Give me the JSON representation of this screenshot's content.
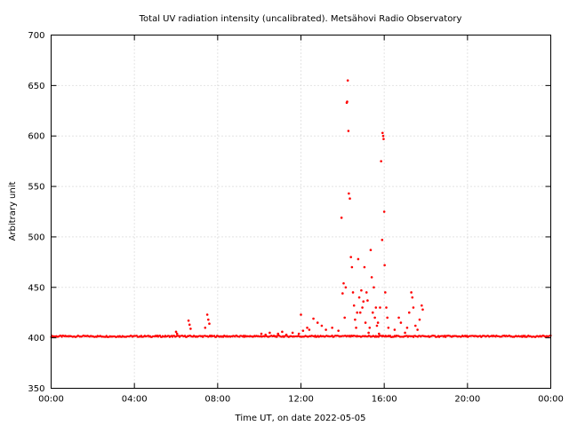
{
  "chart_data": {
    "type": "scatter",
    "title": "Total UV radiation intensity (uncalibrated). Metsähovi Radio Observatory",
    "xlabel": "Time UT, on date 2022-05-05",
    "ylabel": "Arbitrary unit",
    "x_unit": "hours UT",
    "xlim": [
      0,
      24
    ],
    "ylim": [
      350,
      700
    ],
    "xticks": [
      0,
      4,
      8,
      12,
      16,
      20,
      24
    ],
    "xtick_labels": [
      "00:00",
      "04:00",
      "08:00",
      "12:00",
      "16:00",
      "20:00",
      "00:00"
    ],
    "yticks": [
      350,
      400,
      450,
      500,
      550,
      600,
      650,
      700
    ],
    "ytick_labels": [
      "350",
      "400",
      "450",
      "500",
      "550",
      "600",
      "650",
      "700"
    ],
    "grid": true,
    "marker_color": "#ff0000",
    "baseline": {
      "description": "near-constant background level sampled continuously",
      "x_range": [
        0,
        24
      ],
      "value": 401.5,
      "spread": 1.5
    },
    "series": [
      {
        "x": [
          6.0,
          6.05,
          6.6,
          6.65,
          6.7,
          7.4,
          7.5,
          7.55,
          7.6,
          10.1,
          10.3,
          10.5,
          10.7,
          10.9,
          11.1,
          11.3,
          11.6,
          11.9,
          12.0,
          12.1,
          12.3,
          12.4,
          12.6,
          12.8,
          13.0,
          13.2,
          13.5,
          13.8,
          13.95,
          14.0,
          14.05,
          14.1,
          14.15,
          14.2,
          14.22,
          14.25,
          14.28,
          14.3,
          14.35,
          14.4,
          14.45,
          14.5,
          14.55,
          14.6,
          14.65,
          14.7,
          14.75,
          14.8,
          14.85,
          14.9,
          14.95,
          15.0,
          15.05,
          15.1,
          15.15,
          15.2,
          15.25,
          15.3,
          15.35,
          15.4,
          15.45,
          15.5,
          15.55,
          15.6,
          15.65,
          15.7,
          15.75,
          15.8,
          15.85,
          15.9,
          15.92,
          15.95,
          15.97,
          16.0,
          16.02,
          16.05,
          16.1,
          16.15,
          16.2,
          16.5,
          16.7,
          16.8,
          17.0,
          17.1,
          17.2,
          17.3,
          17.35,
          17.4,
          17.5,
          17.6,
          17.7,
          17.8,
          17.85
        ],
        "y": [
          406,
          404,
          417,
          413,
          409,
          410,
          423,
          418,
          414,
          404,
          403,
          405,
          402,
          404,
          406,
          403,
          405,
          404,
          423,
          407,
          410,
          408,
          419,
          415,
          412,
          408,
          410,
          407,
          519,
          444,
          454,
          420,
          450,
          633,
          634,
          655,
          605,
          543,
          538,
          480,
          470,
          445,
          432,
          418,
          410,
          425,
          478,
          440,
          425,
          447,
          430,
          436,
          470,
          415,
          445,
          437,
          405,
          410,
          487,
          460,
          425,
          450,
          420,
          430,
          412,
          415,
          404,
          430,
          575,
          497,
          603,
          600,
          597,
          525,
          472,
          445,
          430,
          420,
          410,
          408,
          420,
          415,
          405,
          410,
          425,
          445,
          440,
          430,
          412,
          408,
          418,
          432,
          428
        ]
      }
    ]
  }
}
